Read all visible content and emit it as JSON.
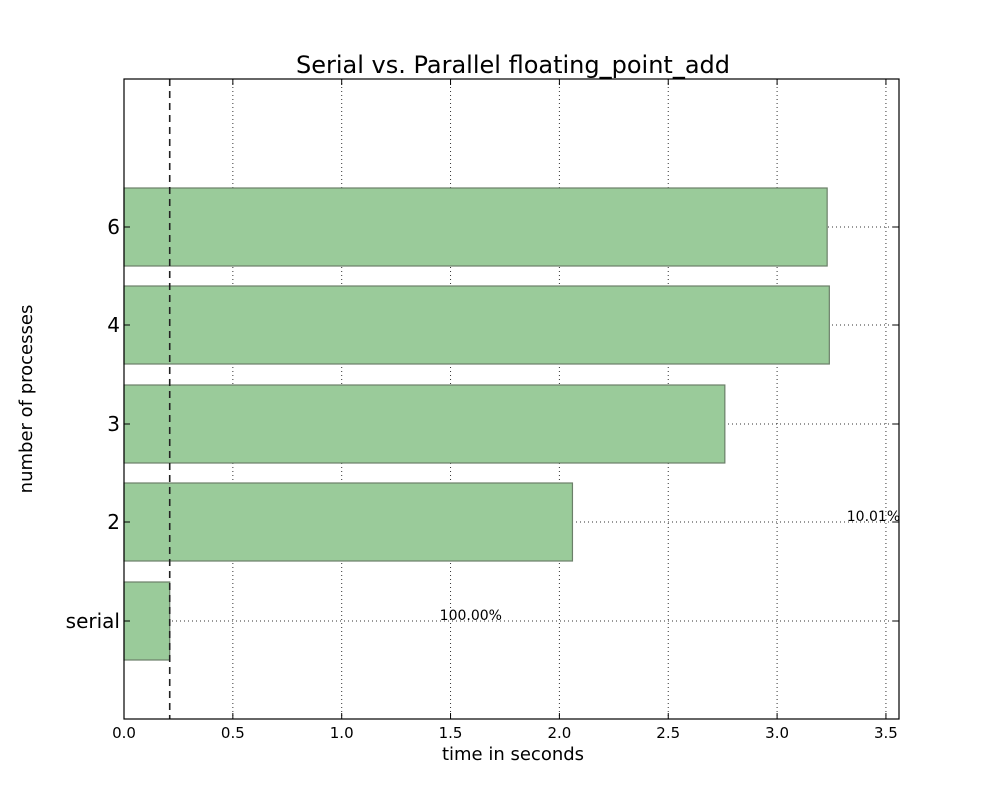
{
  "chart_data": {
    "type": "bar",
    "orientation": "horizontal",
    "title": "Serial vs. Parallel floating_point_add",
    "xlabel": "time in seconds",
    "ylabel": "number of processes",
    "categories": [
      "serial",
      "2",
      "3",
      "4",
      "6"
    ],
    "values": [
      0.21,
      2.06,
      2.76,
      3.24,
      3.23
    ],
    "xlim": [
      0,
      3.56
    ],
    "xticks": [
      "0.0",
      "0.5",
      "1.0",
      "1.5",
      "2.0",
      "2.5",
      "3.0",
      "3.5"
    ],
    "reference_line_x": 0.21,
    "grid": true,
    "bar_color": "#9ACB9A",
    "annotations": [
      {
        "text": "100.00%",
        "x": 1.45,
        "category": "serial"
      },
      {
        "text": "10.01%",
        "x": 3.32,
        "category": "2"
      }
    ]
  }
}
